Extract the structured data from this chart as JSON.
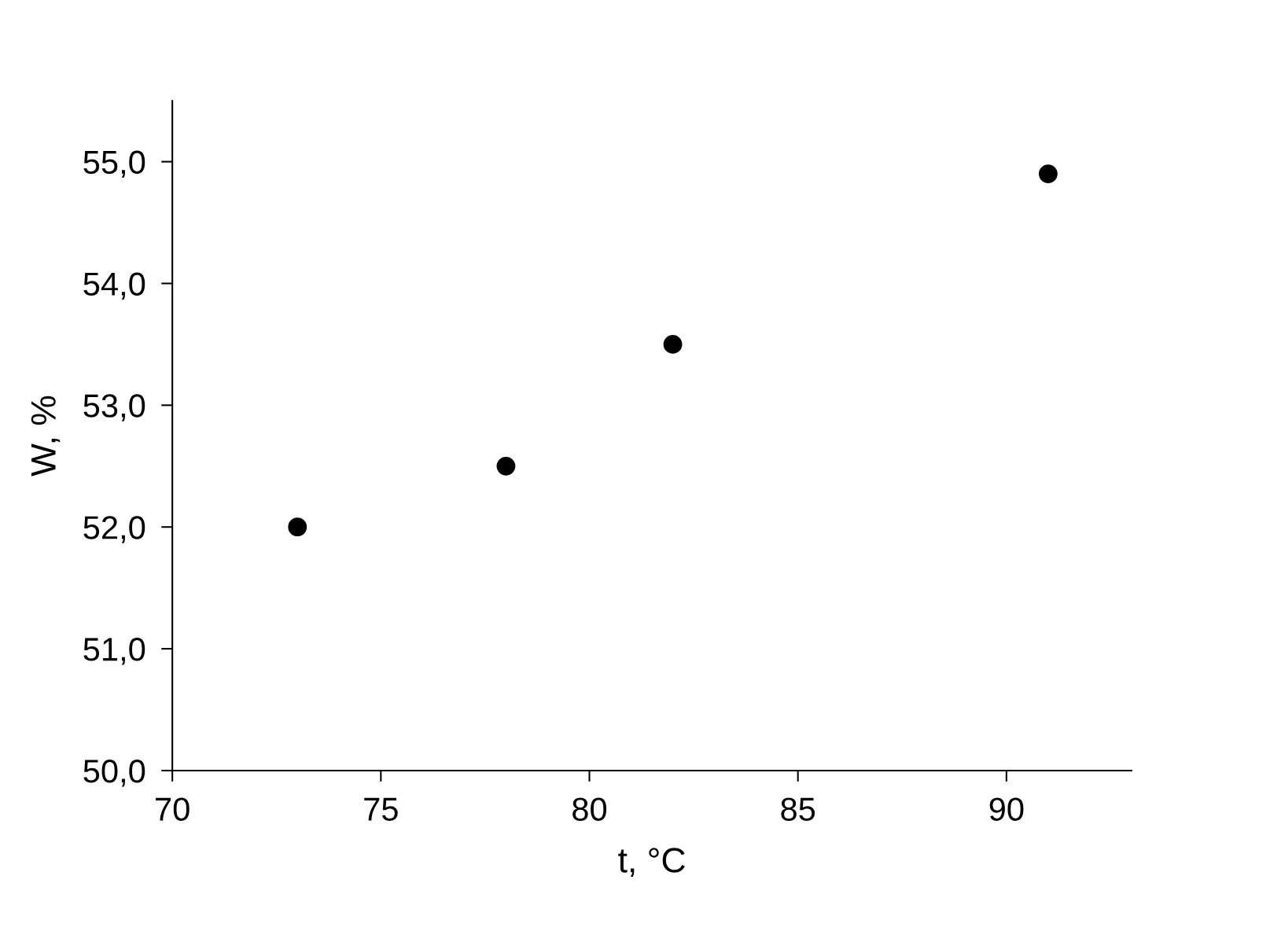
{
  "chart_data": {
    "type": "scatter",
    "xlabel": "t, °C",
    "ylabel": "W, %",
    "x": [
      73,
      78,
      82,
      91
    ],
    "series": [
      {
        "color": "#000000",
        "values": [
          52.0,
          52.5,
          53.5,
          54.9
        ]
      }
    ],
    "xlim": [
      70,
      93
    ],
    "xticks": [
      70,
      75,
      80,
      85,
      90
    ],
    "ylim": [
      50,
      55.5
    ],
    "yticks": [
      {
        "value": 50,
        "label": "50,0"
      },
      {
        "value": 51,
        "label": "51,0"
      },
      {
        "value": 52,
        "label": "52,0"
      },
      {
        "value": 53,
        "label": "53,0"
      },
      {
        "value": 54,
        "label": "54,0"
      },
      {
        "value": 55,
        "label": "55,0"
      }
    ],
    "marker": "circle",
    "grid": false,
    "legend": false
  }
}
